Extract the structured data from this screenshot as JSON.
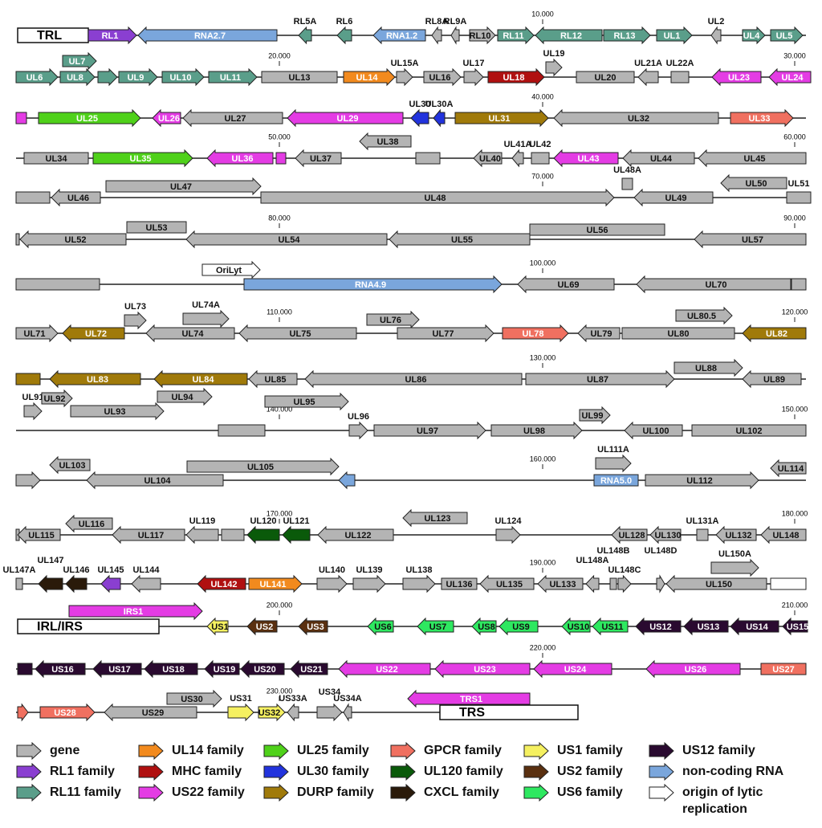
{
  "rows": [
    {
      "scale": [
        "10.000"
      ],
      "features": [
        "TRL",
        "RL1",
        "RNA2.7",
        "RL5A",
        "RL6",
        "RNA1.2",
        "RL8A",
        "RL9A",
        "RL10",
        "RL11",
        "RL12",
        "RL13",
        "UL1",
        "UL2",
        "UL4",
        "UL5"
      ]
    },
    {
      "scale": [
        "20.000",
        "30.000"
      ],
      "features": [
        "UL7",
        "UL6",
        "UL8",
        "UL9",
        "UL10",
        "UL11",
        "UL13",
        "UL14",
        "UL15A",
        "UL16",
        "UL17",
        "UL18",
        "UL19",
        "UL20",
        "UL21A",
        "UL22A",
        "UL23",
        "UL24"
      ]
    },
    {
      "scale": [
        "40.000"
      ],
      "features": [
        "UL25",
        "UL26",
        "UL27",
        "UL29",
        "UL30",
        "UL30A",
        "UL31",
        "UL32",
        "UL33"
      ]
    },
    {
      "scale": [
        "50.000",
        "60.000"
      ],
      "features": [
        "UL34",
        "UL35",
        "UL36",
        "UL37",
        "UL38",
        "UL40",
        "UL41A",
        "UL42",
        "UL43",
        "UL44",
        "UL45"
      ]
    },
    {
      "scale": [
        "70.000"
      ],
      "features": [
        "UL46",
        "UL47",
        "UL48",
        "UL48A",
        "UL49",
        "UL50",
        "UL51"
      ]
    },
    {
      "scale": [
        "80.000",
        "90.000"
      ],
      "features": [
        "UL52",
        "UL53",
        "UL54",
        "UL55",
        "UL56",
        "UL57"
      ]
    },
    {
      "scale": [
        "100.000"
      ],
      "features": [
        "OriLyt",
        "RNA4.9",
        "UL69",
        "UL70"
      ]
    },
    {
      "scale": [
        "110.000",
        "120.000"
      ],
      "features": [
        "UL71",
        "UL72",
        "UL73",
        "UL74A",
        "UL74",
        "UL75",
        "UL76",
        "UL77",
        "UL78",
        "UL79",
        "UL80",
        "UL80.5",
        "UL82"
      ]
    },
    {
      "scale": [
        "130.000"
      ],
      "features": [
        "UL83",
        "UL84",
        "UL85",
        "UL86",
        "UL87",
        "UL88",
        "UL89"
      ]
    },
    {
      "scale": [
        "140.000",
        "150.000"
      ],
      "features": [
        "UL91",
        "UL92",
        "UL93",
        "UL94",
        "UL95",
        "UL96",
        "UL97",
        "UL98",
        "UL99",
        "UL100",
        "UL102"
      ]
    },
    {
      "scale": [
        "160.000"
      ],
      "features": [
        "UL103",
        "UL104",
        "UL105",
        "RNA5.0",
        "UL111A",
        "UL112",
        "UL114"
      ]
    },
    {
      "scale": [
        "170.000",
        "180.000"
      ],
      "features": [
        "UL115",
        "UL116",
        "UL117",
        "UL119",
        "UL120",
        "UL121",
        "UL122",
        "UL123",
        "UL124",
        "UL128",
        "UL130",
        "UL131A",
        "UL132",
        "UL148"
      ]
    },
    {
      "scale": [
        "190.000"
      ],
      "features": [
        "UL147A",
        "UL147",
        "UL146",
        "UL145",
        "UL144",
        "UL142",
        "UL141",
        "UL140",
        "UL139",
        "UL138",
        "UL136",
        "UL135",
        "UL133",
        "UL148A",
        "UL148B",
        "UL148C",
        "UL148D",
        "UL150",
        "UL150A"
      ]
    },
    {
      "scale": [
        "200.000",
        "210.000"
      ],
      "features": [
        "IRS1",
        "IRL/IRS",
        "US1",
        "US2",
        "US3",
        "US6",
        "US7",
        "US8",
        "US9",
        "US10",
        "US11",
        "US12",
        "US13",
        "US14",
        "US15"
      ]
    },
    {
      "scale": [
        "220.000"
      ],
      "features": [
        "US16",
        "US17",
        "US18",
        "US19",
        "US20",
        "US21",
        "US22",
        "US23",
        "US24",
        "US26",
        "US27"
      ]
    },
    {
      "scale": [
        "230.000"
      ],
      "features": [
        "US28",
        "US29",
        "US30",
        "US31",
        "US32",
        "US33A",
        "US34",
        "US34A",
        "TRS1",
        "TRS"
      ]
    }
  ],
  "legend": [
    {
      "label": "gene",
      "color": "#b4b4b4"
    },
    {
      "label": "RL1 family",
      "color": "#8a3fd1"
    },
    {
      "label": "RL11 family",
      "color": "#5a9e8a"
    },
    {
      "label": "UL14 family",
      "color": "#f28a1e"
    },
    {
      "label": "MHC family",
      "color": "#b01010"
    },
    {
      "label": "US22 family",
      "color": "#e43ce4"
    },
    {
      "label": "UL25 family",
      "color": "#4fd11a"
    },
    {
      "label": "UL30 family",
      "color": "#2233dd"
    },
    {
      "label": "DURP family",
      "color": "#a07a0a"
    },
    {
      "label": "GPCR family",
      "color": "#f07060"
    },
    {
      "label": "UL120 family",
      "color": "#0a5a0a"
    },
    {
      "label": "CXCL family",
      "color": "#2a1a0a"
    },
    {
      "label": "US1 family",
      "color": "#f5f060"
    },
    {
      "label": "US2 family",
      "color": "#5a3010"
    },
    {
      "label": "US6 family",
      "color": "#2ee860"
    },
    {
      "label": "US12 family",
      "color": "#2a0a30"
    },
    {
      "label": "non-coding RNA",
      "color": "#7aa6dc"
    },
    {
      "label": "origin of lytic replication",
      "color": "#ffffff"
    }
  ]
}
